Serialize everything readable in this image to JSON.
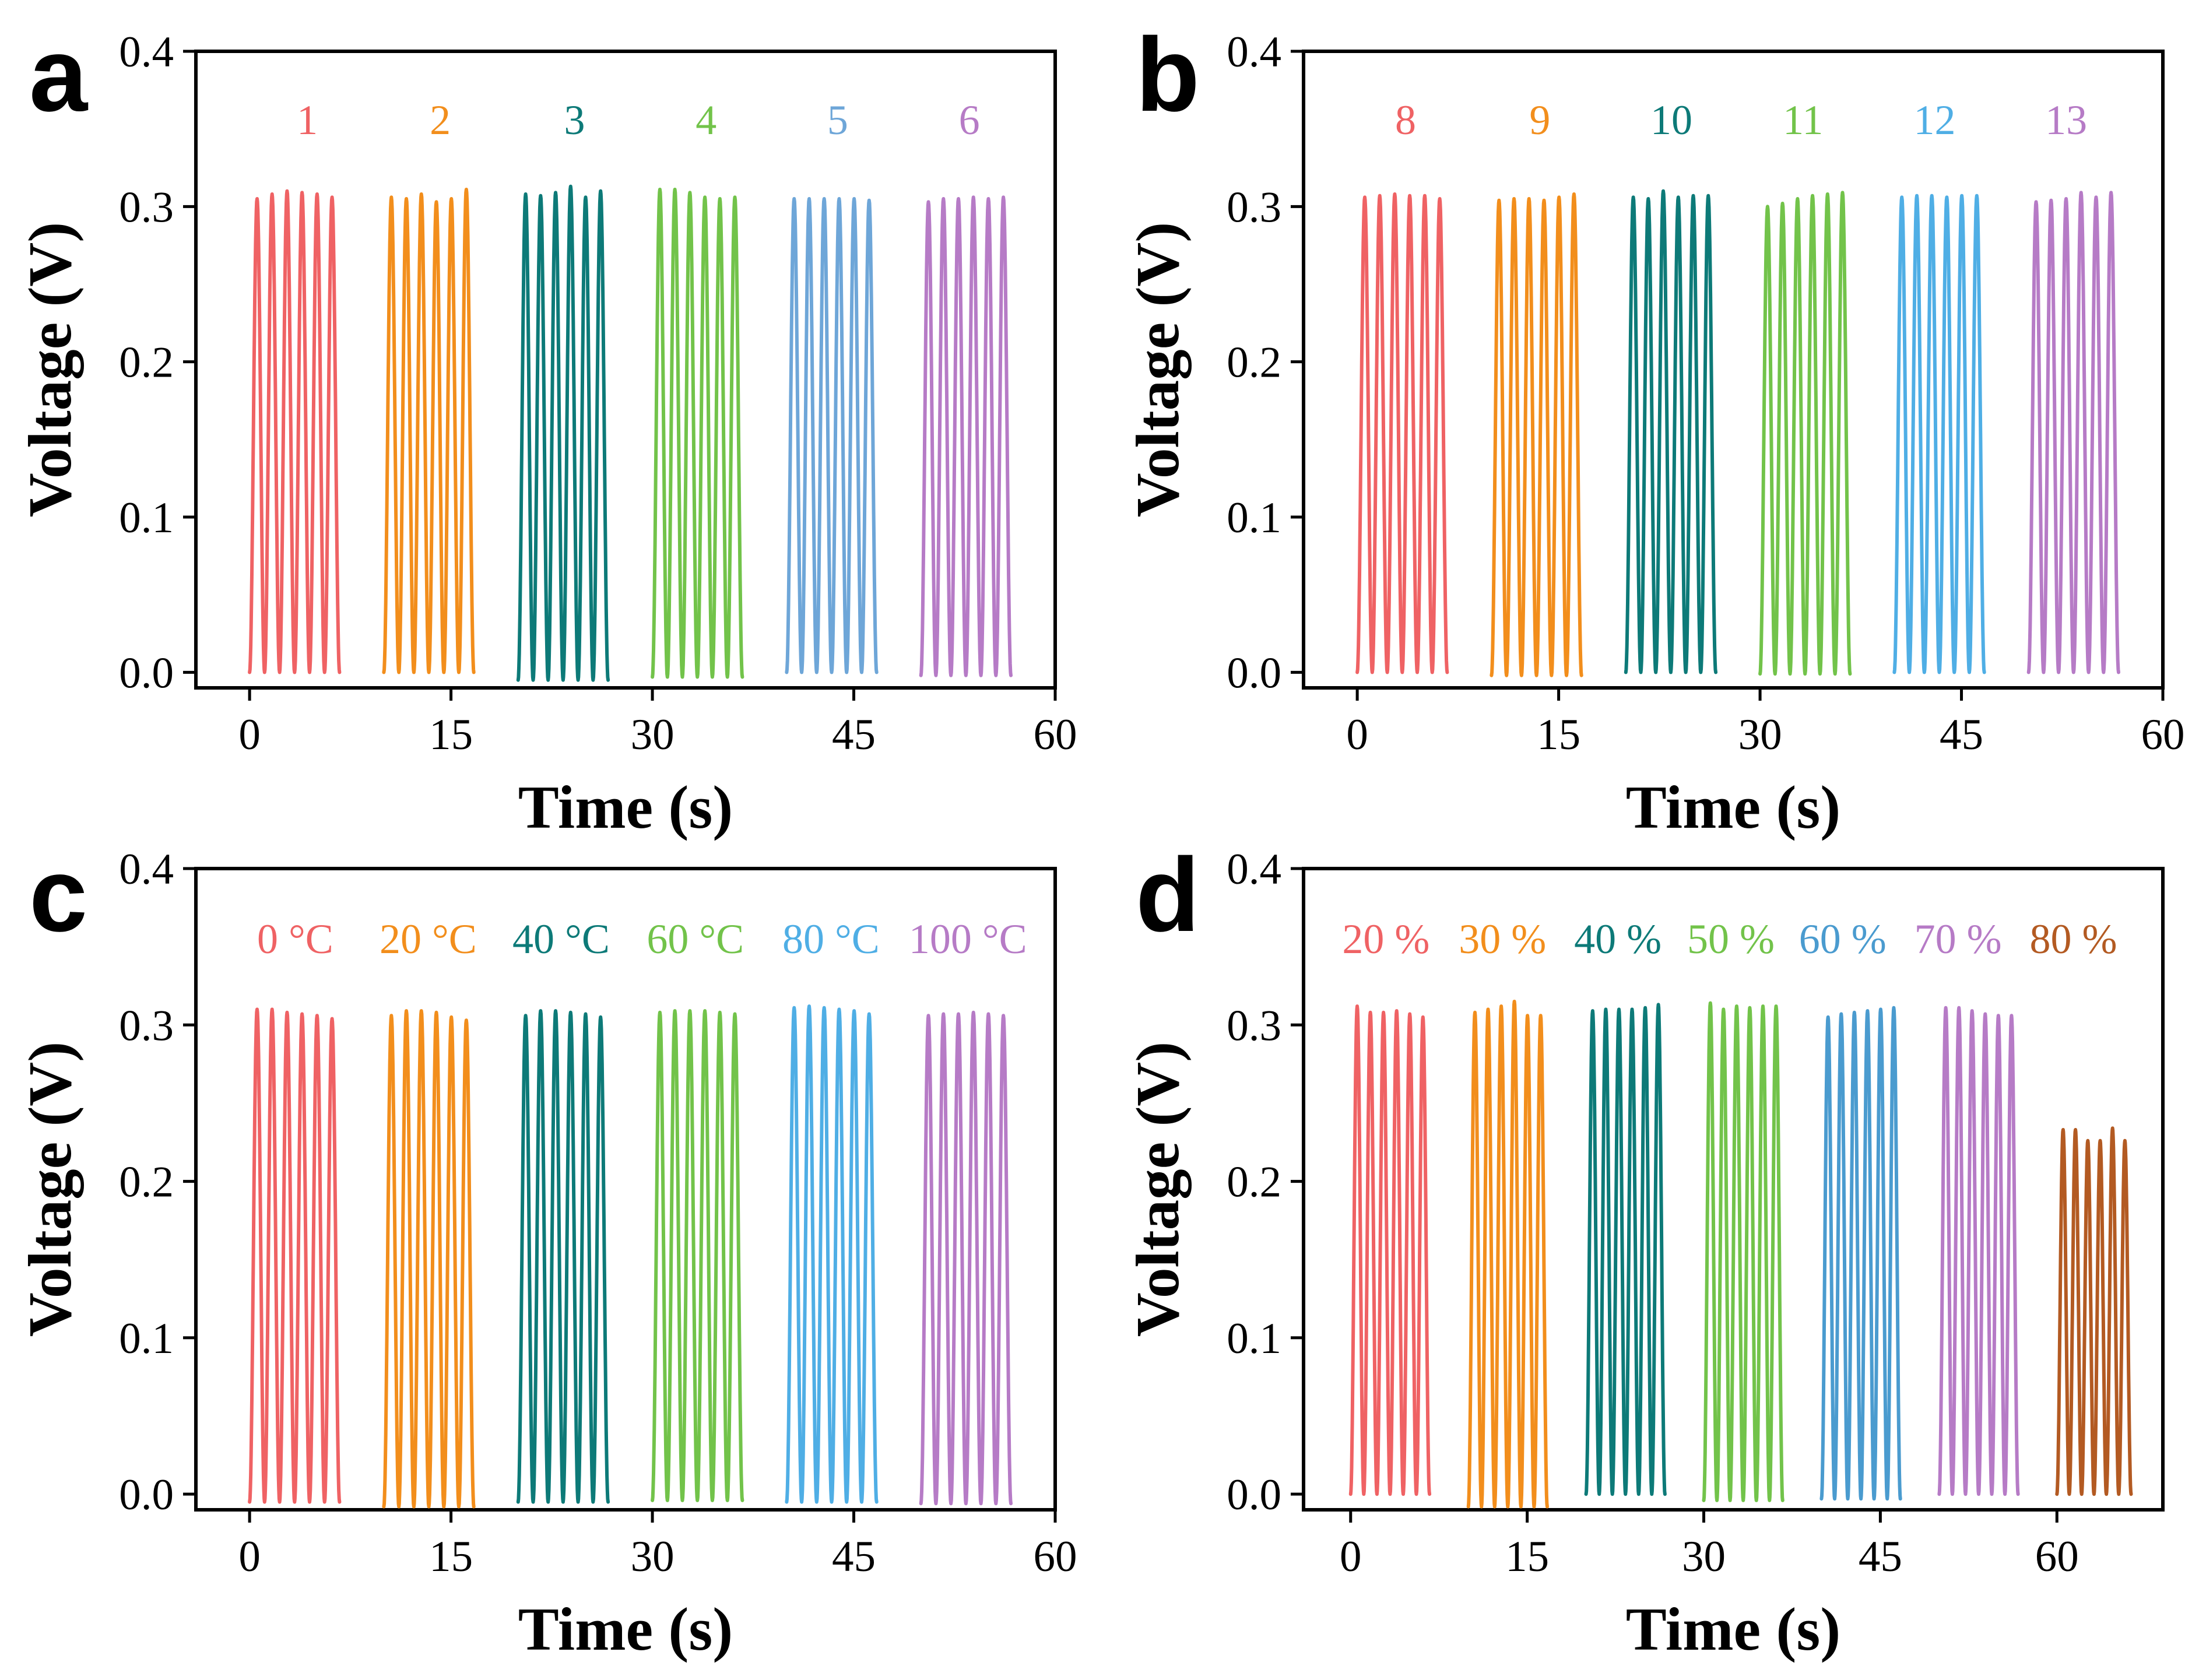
{
  "chart_data": [
    {
      "panel": "a",
      "type": "line",
      "xlabel": "Time (s)",
      "ylabel": "Voltage (V)",
      "xlim": [
        -4,
        60
      ],
      "ylim": [
        -0.01,
        0.4
      ],
      "xticks": [
        0,
        15,
        30,
        45,
        60
      ],
      "yticks": [
        0.0,
        0.1,
        0.2,
        0.3,
        0.4
      ],
      "xtick_labels": [
        "0",
        "15",
        "30",
        "45",
        "60"
      ],
      "ytick_labels": [
        "0.0",
        "0.1",
        "0.2",
        "0.3",
        "0.4"
      ],
      "series": [
        {
          "name": "1",
          "color": "#ef6264",
          "label_x": 4.3,
          "start": 0,
          "end": 6.7,
          "cycles": 6,
          "min": 0.0,
          "peaks": [
            0.305,
            0.308,
            0.31,
            0.309,
            0.308,
            0.306
          ]
        },
        {
          "name": "2",
          "color": "#f28e1c",
          "label_x": 14.2,
          "start": 10,
          "end": 16.7,
          "cycles": 6,
          "min": 0.0,
          "peaks": [
            0.306,
            0.305,
            0.308,
            0.303,
            0.305,
            0.311
          ]
        },
        {
          "name": "3",
          "color": "#0d7a78",
          "label_x": 24.2,
          "start": 20,
          "end": 26.7,
          "cycles": 6,
          "min": -0.005,
          "peaks": [
            0.308,
            0.307,
            0.309,
            0.313,
            0.306,
            0.31
          ]
        },
        {
          "name": "4",
          "color": "#72c34a",
          "label_x": 34.0,
          "start": 30,
          "end": 36.7,
          "cycles": 6,
          "min": -0.003,
          "peaks": [
            0.311,
            0.311,
            0.309,
            0.306,
            0.305,
            0.306
          ]
        },
        {
          "name": "5",
          "color": "#6ea6d8",
          "label_x": 43.8,
          "start": 40,
          "end": 46.7,
          "cycles": 6,
          "min": 0.0,
          "peaks": [
            0.305,
            0.305,
            0.305,
            0.305,
            0.305,
            0.304
          ]
        },
        {
          "name": "6",
          "color": "#b67bc6",
          "label_x": 53.6,
          "start": 50,
          "end": 56.7,
          "cycles": 6,
          "min": -0.002,
          "peaks": [
            0.303,
            0.305,
            0.305,
            0.306,
            0.305,
            0.306
          ]
        }
      ]
    },
    {
      "panel": "b",
      "type": "line",
      "xlabel": "Time (s)",
      "ylabel": "Voltage (V)",
      "xlim": [
        -4,
        60
      ],
      "ylim": [
        -0.01,
        0.4
      ],
      "xticks": [
        0,
        15,
        30,
        45,
        60
      ],
      "yticks": [
        0.0,
        0.1,
        0.2,
        0.3,
        0.4
      ],
      "xtick_labels": [
        "0",
        "15",
        "30",
        "45",
        "60"
      ],
      "ytick_labels": [
        "0.0",
        "0.1",
        "0.2",
        "0.3",
        "0.4"
      ],
      "series": [
        {
          "name": "8",
          "color": "#ef6264",
          "label_x": 3.6,
          "start": 0,
          "end": 6.7,
          "cycles": 6,
          "min": 0.0,
          "peaks": [
            0.306,
            0.307,
            0.308,
            0.307,
            0.307,
            0.305
          ]
        },
        {
          "name": "9",
          "color": "#f28e1c",
          "label_x": 13.6,
          "start": 10,
          "end": 16.7,
          "cycles": 6,
          "min": -0.002,
          "peaks": [
            0.304,
            0.305,
            0.305,
            0.304,
            0.306,
            0.308
          ]
        },
        {
          "name": "10",
          "color": "#0d7a78",
          "label_x": 23.4,
          "start": 20,
          "end": 26.7,
          "cycles": 6,
          "min": 0.0,
          "peaks": [
            0.306,
            0.305,
            0.31,
            0.306,
            0.307,
            0.307
          ]
        },
        {
          "name": "11",
          "color": "#72c34a",
          "label_x": 33.2,
          "start": 30,
          "end": 36.7,
          "cycles": 6,
          "min": -0.001,
          "peaks": [
            0.3,
            0.302,
            0.305,
            0.307,
            0.308,
            0.309
          ]
        },
        {
          "name": "12",
          "color": "#4faee5",
          "label_x": 43.0,
          "start": 40,
          "end": 46.7,
          "cycles": 6,
          "min": 0.0,
          "peaks": [
            0.306,
            0.307,
            0.307,
            0.306,
            0.307,
            0.307
          ]
        },
        {
          "name": "13",
          "color": "#b67bc6",
          "label_x": 52.8,
          "start": 50,
          "end": 56.7,
          "cycles": 6,
          "min": 0.0,
          "peaks": [
            0.303,
            0.304,
            0.305,
            0.309,
            0.306,
            0.309
          ]
        }
      ]
    },
    {
      "panel": "c",
      "type": "line",
      "xlabel": "Time (s)",
      "ylabel": "Voltage (V)",
      "xlim": [
        -4,
        60
      ],
      "ylim": [
        -0.01,
        0.4
      ],
      "xticks": [
        0,
        15,
        30,
        45,
        60
      ],
      "yticks": [
        0.0,
        0.1,
        0.2,
        0.3,
        0.4
      ],
      "xtick_labels": [
        "0",
        "15",
        "30",
        "45",
        "60"
      ],
      "ytick_labels": [
        "0.0",
        "0.1",
        "0.2",
        "0.3",
        "0.4"
      ],
      "series": [
        {
          "name": "0 °C",
          "color": "#ef6264",
          "label_x": 3.4,
          "start": 0,
          "end": 6.7,
          "cycles": 6,
          "min": -0.005,
          "peaks": [
            0.31,
            0.31,
            0.308,
            0.307,
            0.306,
            0.304
          ]
        },
        {
          "name": "20 °C",
          "color": "#f28e1c",
          "label_x": 13.3,
          "start": 10,
          "end": 16.7,
          "cycles": 6,
          "min": -0.008,
          "peaks": [
            0.306,
            0.309,
            0.309,
            0.308,
            0.305,
            0.303
          ]
        },
        {
          "name": "40 °C",
          "color": "#0d7a78",
          "label_x": 23.2,
          "start": 20,
          "end": 26.7,
          "cycles": 6,
          "min": -0.005,
          "peaks": [
            0.306,
            0.309,
            0.309,
            0.308,
            0.307,
            0.305
          ]
        },
        {
          "name": "60 °C",
          "color": "#72c34a",
          "label_x": 33.2,
          "start": 30,
          "end": 36.7,
          "cycles": 6,
          "min": -0.004,
          "peaks": [
            0.308,
            0.309,
            0.309,
            0.309,
            0.308,
            0.307
          ]
        },
        {
          "name": "80 °C",
          "color": "#4faee5",
          "label_x": 43.3,
          "start": 40,
          "end": 46.7,
          "cycles": 6,
          "min": -0.005,
          "peaks": [
            0.311,
            0.312,
            0.311,
            0.31,
            0.309,
            0.307
          ]
        },
        {
          "name": "100 °C",
          "color": "#b67bc6",
          "label_x": 53.5,
          "start": 50,
          "end": 56.7,
          "cycles": 6,
          "min": -0.006,
          "peaks": [
            0.306,
            0.307,
            0.307,
            0.308,
            0.307,
            0.306
          ]
        }
      ]
    },
    {
      "panel": "d",
      "type": "line",
      "xlabel": "Time (s)",
      "ylabel": "Voltage (V)",
      "xlim": [
        -4,
        69
      ],
      "ylim": [
        -0.01,
        0.4
      ],
      "xticks": [
        0,
        15,
        30,
        45,
        60
      ],
      "yticks": [
        0.0,
        0.1,
        0.2,
        0.3,
        0.4
      ],
      "xtick_labels": [
        "0",
        "15",
        "30",
        "45",
        "60"
      ],
      "ytick_labels": [
        "0.0",
        "0.1",
        "0.2",
        "0.3",
        "0.4"
      ],
      "series": [
        {
          "name": "20 %",
          "color": "#ef6264",
          "label_x": 3.0,
          "start": 0,
          "end": 6.7,
          "cycles": 6,
          "min": 0.0,
          "peaks": [
            0.312,
            0.308,
            0.308,
            0.309,
            0.307,
            0.305
          ]
        },
        {
          "name": "30 %",
          "color": "#f28e1c",
          "label_x": 12.9,
          "start": 10,
          "end": 16.7,
          "cycles": 6,
          "min": -0.008,
          "peaks": [
            0.308,
            0.31,
            0.312,
            0.315,
            0.306,
            0.306
          ]
        },
        {
          "name": "40 %",
          "color": "#0d7a78",
          "label_x": 22.7,
          "start": 20,
          "end": 26.7,
          "cycles": 6,
          "min": 0.0,
          "peaks": [
            0.309,
            0.31,
            0.31,
            0.31,
            0.311,
            0.313
          ]
        },
        {
          "name": "50 %",
          "color": "#72c34a",
          "label_x": 32.3,
          "start": 30,
          "end": 36.7,
          "cycles": 6,
          "min": -0.004,
          "peaks": [
            0.314,
            0.31,
            0.312,
            0.311,
            0.312,
            0.312
          ]
        },
        {
          "name": "60 %",
          "color": "#4a9bcf",
          "label_x": 41.8,
          "start": 40,
          "end": 46.7,
          "cycles": 6,
          "min": -0.003,
          "peaks": [
            0.305,
            0.307,
            0.308,
            0.309,
            0.31,
            0.311
          ]
        },
        {
          "name": "70 %",
          "color": "#b67bc6",
          "label_x": 51.6,
          "start": 50,
          "end": 56.7,
          "cycles": 6,
          "min": 0.0,
          "peaks": [
            0.311,
            0.311,
            0.309,
            0.307,
            0.306,
            0.306
          ]
        },
        {
          "name": "80 %",
          "color": "#b35a22",
          "label_x": 61.4,
          "start": 60,
          "end": 66.3,
          "cycles": 6,
          "min": 0.0,
          "peaks": [
            0.233,
            0.233,
            0.226,
            0.226,
            0.234,
            0.226
          ]
        }
      ]
    }
  ]
}
